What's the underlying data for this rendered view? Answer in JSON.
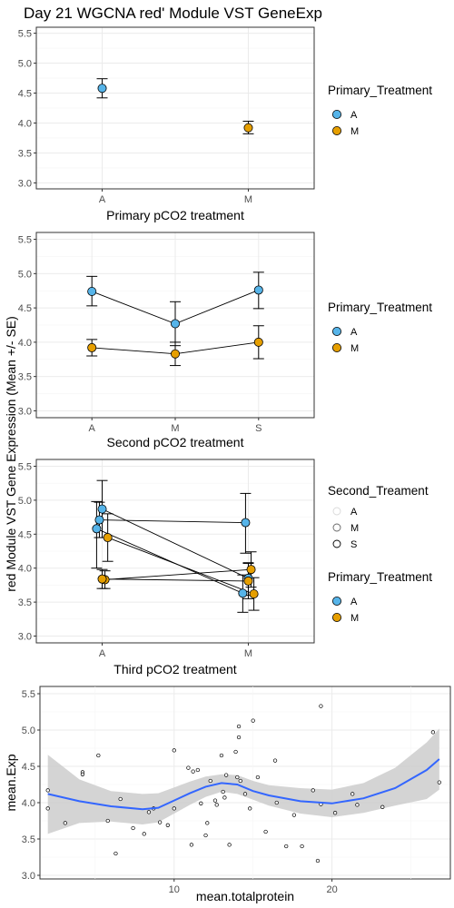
{
  "title": "Day 21 WGCNA red' Module VST GeneExp",
  "shared_ylabel": "red Module VST Gene Expression (Mean +/- SE)",
  "colors": {
    "A": "#56B4E9",
    "M": "#E69F00",
    "smooth": "#3366FF",
    "ribbon": "#CCCCCC"
  },
  "legends": {
    "primary": {
      "title": "Primary_Treatment",
      "labels": [
        "A",
        "M"
      ]
    },
    "second": {
      "title": "Second_Treament",
      "labels": [
        "A",
        "M",
        "S"
      ]
    }
  },
  "chart_data": [
    {
      "type": "scatter",
      "subtype": "point-errorbar",
      "xlabel": "Primary pCO2 treatment",
      "categories": [
        "A",
        "M"
      ],
      "ylim": [
        2.9,
        5.6
      ],
      "yticks": [
        3.0,
        3.5,
        4.0,
        4.5,
        5.0,
        5.5
      ],
      "grid": true,
      "legend_position": "right",
      "series": [
        {
          "name": "A",
          "points": [
            {
              "x": "A",
              "y": 4.58,
              "lo": 4.42,
              "hi": 4.74
            }
          ]
        },
        {
          "name": "M",
          "points": [
            {
              "x": "M",
              "y": 3.92,
              "lo": 3.82,
              "hi": 4.03
            }
          ]
        }
      ]
    },
    {
      "type": "line",
      "subtype": "point-errorbar",
      "xlabel": "Second pCO2 treatment",
      "categories": [
        "A",
        "M",
        "S"
      ],
      "ylim": [
        2.9,
        5.6
      ],
      "yticks": [
        3.0,
        3.5,
        4.0,
        4.5,
        5.0,
        5.5
      ],
      "grid": true,
      "legend_position": "right",
      "series": [
        {
          "name": "A",
          "points": [
            {
              "x": "A",
              "y": 4.74,
              "lo": 4.53,
              "hi": 4.96
            },
            {
              "x": "M",
              "y": 4.27,
              "lo": 3.95,
              "hi": 4.59
            },
            {
              "x": "S",
              "y": 4.76,
              "lo": 4.49,
              "hi": 5.02
            }
          ]
        },
        {
          "name": "M",
          "points": [
            {
              "x": "A",
              "y": 3.92,
              "lo": 3.8,
              "hi": 4.04
            },
            {
              "x": "M",
              "y": 3.83,
              "lo": 3.66,
              "hi": 4.0
            },
            {
              "x": "S",
              "y": 4.0,
              "lo": 3.76,
              "hi": 4.24
            }
          ]
        }
      ]
    },
    {
      "type": "line",
      "subtype": "point-errorbar",
      "xlabel": "Third pCO2 treatment",
      "categories": [
        "A",
        "M"
      ],
      "ylim": [
        2.9,
        5.6
      ],
      "yticks": [
        3.0,
        3.5,
        4.0,
        4.5,
        5.0,
        5.5
      ],
      "grid": true,
      "legend_position": "right",
      "series": [
        {
          "name": "A",
          "group": "A",
          "dodge": -0.02,
          "points": [
            {
              "x": "A",
              "y": 4.58,
              "lo": 4.0,
              "hi": 4.98
            },
            {
              "x": "M",
              "y": 3.63,
              "lo": 3.35,
              "hi": 3.9
            }
          ]
        },
        {
          "name": "A",
          "group": "M",
          "dodge": 0.0,
          "points": [
            {
              "x": "A",
              "y": 4.87,
              "lo": 4.45,
              "hi": 5.29
            },
            {
              "x": "M",
              "y": 3.85,
              "lo": 3.6,
              "hi": 4.08
            }
          ]
        },
        {
          "name": "A",
          "group": "S",
          "dodge": -0.01,
          "points": [
            {
              "x": "A",
              "y": 4.71,
              "lo": 4.45,
              "hi": 4.97
            },
            {
              "x": "M",
              "y": 4.67,
              "lo": 4.22,
              "hi": 5.1
            }
          ]
        },
        {
          "name": "M",
          "group": "A",
          "dodge": 0.02,
          "points": [
            {
              "x": "A",
              "y": 4.45,
              "lo": 4.1,
              "hi": 4.8
            },
            {
              "x": "M",
              "y": 3.62,
              "lo": 3.38,
              "hi": 3.86
            }
          ]
        },
        {
          "name": "M",
          "group": "M",
          "dodge": 0.01,
          "points": [
            {
              "x": "A",
              "y": 3.83,
              "lo": 3.7,
              "hi": 3.96
            },
            {
              "x": "M",
              "y": 3.98,
              "lo": 3.72,
              "hi": 4.24
            }
          ]
        },
        {
          "name": "M",
          "group": "S",
          "dodge": 0.0,
          "points": [
            {
              "x": "A",
              "y": 3.84,
              "lo": 3.7,
              "hi": 3.98
            },
            {
              "x": "M",
              "y": 3.81,
              "lo": 3.55,
              "hi": 4.07
            }
          ]
        }
      ]
    },
    {
      "type": "scatter",
      "subtype": "loess",
      "xlabel": "mean.totalprotein",
      "ylabel": "mean.Exp",
      "xlim": [
        1.5,
        27.5
      ],
      "ylim": [
        2.95,
        5.6
      ],
      "xticks": [
        10,
        20
      ],
      "yticks": [
        3.0,
        3.5,
        4.0,
        4.5,
        5.0,
        5.5
      ],
      "grid": true,
      "points": [
        {
          "x": 2.0,
          "y": 4.17
        },
        {
          "x": 2.0,
          "y": 3.92
        },
        {
          "x": 3.1,
          "y": 3.72
        },
        {
          "x": 4.2,
          "y": 4.42
        },
        {
          "x": 4.2,
          "y": 4.39
        },
        {
          "x": 5.2,
          "y": 4.65
        },
        {
          "x": 5.8,
          "y": 3.75
        },
        {
          "x": 6.3,
          "y": 3.3
        },
        {
          "x": 6.6,
          "y": 4.05
        },
        {
          "x": 7.4,
          "y": 3.65
        },
        {
          "x": 8.1,
          "y": 3.57
        },
        {
          "x": 8.4,
          "y": 3.87
        },
        {
          "x": 8.7,
          "y": 3.92
        },
        {
          "x": 9.1,
          "y": 3.73
        },
        {
          "x": 9.6,
          "y": 3.69
        },
        {
          "x": 10.0,
          "y": 4.72
        },
        {
          "x": 10.0,
          "y": 3.92
        },
        {
          "x": 10.9,
          "y": 4.48
        },
        {
          "x": 11.1,
          "y": 3.42
        },
        {
          "x": 11.2,
          "y": 4.43
        },
        {
          "x": 11.5,
          "y": 4.45
        },
        {
          "x": 11.7,
          "y": 3.99
        },
        {
          "x": 12.0,
          "y": 3.55
        },
        {
          "x": 12.1,
          "y": 3.72
        },
        {
          "x": 12.3,
          "y": 4.3
        },
        {
          "x": 12.6,
          "y": 4.03
        },
        {
          "x": 12.7,
          "y": 3.97
        },
        {
          "x": 13.0,
          "y": 4.65
        },
        {
          "x": 13.1,
          "y": 4.15
        },
        {
          "x": 13.2,
          "y": 4.07
        },
        {
          "x": 13.3,
          "y": 4.38
        },
        {
          "x": 13.5,
          "y": 3.42
        },
        {
          "x": 13.9,
          "y": 4.7
        },
        {
          "x": 14.0,
          "y": 4.35
        },
        {
          "x": 14.1,
          "y": 5.05
        },
        {
          "x": 14.1,
          "y": 4.9
        },
        {
          "x": 14.2,
          "y": 4.3
        },
        {
          "x": 14.5,
          "y": 4.12
        },
        {
          "x": 14.8,
          "y": 3.92
        },
        {
          "x": 15.0,
          "y": 5.13
        },
        {
          "x": 15.3,
          "y": 4.35
        },
        {
          "x": 15.8,
          "y": 3.6
        },
        {
          "x": 16.4,
          "y": 4.58
        },
        {
          "x": 16.5,
          "y": 4.0
        },
        {
          "x": 17.1,
          "y": 3.4
        },
        {
          "x": 17.6,
          "y": 3.83
        },
        {
          "x": 18.1,
          "y": 3.4
        },
        {
          "x": 18.8,
          "y": 4.17
        },
        {
          "x": 19.1,
          "y": 3.2
        },
        {
          "x": 19.3,
          "y": 5.33
        },
        {
          "x": 19.3,
          "y": 3.98
        },
        {
          "x": 20.2,
          "y": 3.86
        },
        {
          "x": 21.3,
          "y": 4.12
        },
        {
          "x": 21.6,
          "y": 3.97
        },
        {
          "x": 23.2,
          "y": 3.94
        },
        {
          "x": 26.4,
          "y": 4.97
        },
        {
          "x": 26.8,
          "y": 4.28
        }
      ],
      "smooth": {
        "x": [
          2.0,
          4.0,
          6.0,
          8.0,
          9.0,
          10.0,
          11.0,
          12.0,
          13.0,
          14.0,
          15.0,
          16.0,
          18.0,
          20.0,
          22.0,
          24.0,
          26.0,
          26.8
        ],
        "y": [
          4.12,
          4.02,
          3.95,
          3.91,
          3.93,
          4.03,
          4.13,
          4.22,
          4.27,
          4.25,
          4.16,
          4.1,
          4.02,
          3.99,
          4.06,
          4.2,
          4.45,
          4.6
        ],
        "lower": [
          3.57,
          3.72,
          3.74,
          3.7,
          3.73,
          3.85,
          3.97,
          4.08,
          4.15,
          4.12,
          4.04,
          3.96,
          3.85,
          3.8,
          3.86,
          3.96,
          4.05,
          4.18
        ],
        "upper": [
          4.66,
          4.32,
          4.16,
          4.12,
          4.13,
          4.21,
          4.29,
          4.36,
          4.39,
          4.38,
          4.3,
          4.24,
          4.2,
          4.18,
          4.27,
          4.48,
          4.83,
          5.02
        ]
      }
    }
  ]
}
